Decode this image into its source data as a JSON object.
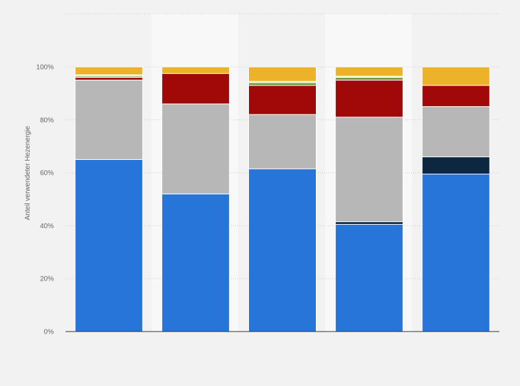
{
  "chart_data": {
    "type": "bar",
    "stacked": true,
    "normalized": true,
    "ylabel": "Anteil verwendeter Hezenergie",
    "ylim": [
      0,
      100
    ],
    "yticks": [
      "0%",
      "20%",
      "40%",
      "60%",
      "80%",
      "100%"
    ],
    "grid": true,
    "legend": "none",
    "series": [
      {
        "color": "#2775d9",
        "values": [
          65,
          52,
          61.5,
          40.5,
          59.5
        ]
      },
      {
        "color": "#0e2740",
        "values": [
          0,
          0,
          0,
          1,
          6.5
        ]
      },
      {
        "color": "#b7b7b7",
        "values": [
          30,
          34,
          20.5,
          39.5,
          19
        ]
      },
      {
        "color": "#a10909",
        "values": [
          1,
          11.5,
          11,
          14,
          8
        ]
      },
      {
        "color": "#6e9a3b",
        "values": [
          0.5,
          0,
          1,
          1,
          0
        ]
      },
      {
        "color": "#f0e48a",
        "values": [
          0.5,
          0,
          0.5,
          0.5,
          0
        ]
      },
      {
        "color": "#ecb22a",
        "values": [
          3,
          2.5,
          5.5,
          3.5,
          7
        ]
      }
    ]
  }
}
